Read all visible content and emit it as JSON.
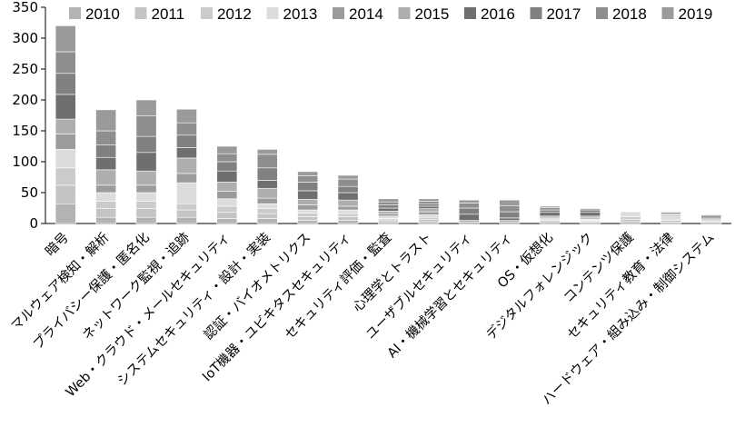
{
  "chart_data": {
    "type": "bar",
    "stacked": true,
    "title": "",
    "xlabel": "",
    "ylabel": "",
    "ylim": [
      0,
      350
    ],
    "yticks": [
      0,
      50,
      100,
      150,
      200,
      250,
      300,
      350
    ],
    "grid": false,
    "legend_position": "top",
    "categories": [
      "暗号",
      "マルウェア検知・解析",
      "プライバシー保護・匿名化",
      "ネットワーク監視・追跡",
      "Web・クラウド・メールセキュリティ",
      "システムセキュリティ・設計・実装",
      "認証・バイオメトリクス",
      "IoT機器・ユビキタスセキュリティ",
      "セキュリティ評価・監査",
      "心理学とトラスト",
      "ユーザブルセキュリティ",
      "AI・機械学習とセキュリティ",
      "OS・仮想化",
      "デジタルフォレンジック",
      "コンテンツ保護",
      "セキュリティ教育・法律",
      "ハードウェア・組み込み・制御システム"
    ],
    "series": [
      {
        "name": "2010",
        "color": "#b3b3b3",
        "values": [
          32,
          10,
          10,
          10,
          8,
          8,
          5,
          5,
          3,
          3,
          0,
          0,
          3,
          2,
          3,
          2,
          2
        ]
      },
      {
        "name": "2011",
        "color": "#c4c4c4",
        "values": [
          30,
          14,
          14,
          12,
          10,
          8,
          6,
          6,
          3,
          4,
          0,
          0,
          2,
          2,
          4,
          3,
          2
        ]
      },
      {
        "name": "2012",
        "color": "#cbcbcb",
        "values": [
          28,
          12,
          12,
          10,
          10,
          8,
          6,
          5,
          2,
          3,
          0,
          0,
          2,
          1,
          4,
          2,
          1
        ]
      },
      {
        "name": "2013",
        "color": "#dcdcdc",
        "values": [
          30,
          14,
          14,
          34,
          12,
          8,
          5,
          6,
          4,
          4,
          0,
          0,
          1,
          2,
          8,
          5,
          0
        ]
      },
      {
        "name": "2014",
        "color": "#9b9b9b",
        "values": [
          25,
          12,
          12,
          15,
          12,
          9,
          8,
          6,
          4,
          5,
          2,
          2,
          2,
          2,
          0,
          2,
          2
        ]
      },
      {
        "name": "2015",
        "color": "#aeaeae",
        "values": [
          24,
          25,
          23,
          25,
          15,
          16,
          9,
          10,
          4,
          5,
          3,
          3,
          2,
          3,
          0,
          2,
          2
        ]
      },
      {
        "name": "2016",
        "color": "#6f6f6f",
        "values": [
          40,
          20,
          30,
          17,
          18,
          13,
          14,
          12,
          5,
          4,
          10,
          4,
          6,
          6,
          0,
          2,
          3
        ]
      },
      {
        "name": "2017",
        "color": "#808080",
        "values": [
          34,
          20,
          26,
          20,
          15,
          20,
          14,
          10,
          5,
          4,
          10,
          10,
          4,
          4,
          0,
          1,
          2
        ]
      },
      {
        "name": "2018",
        "color": "#8e8e8e",
        "values": [
          35,
          23,
          33,
          20,
          13,
          22,
          10,
          12,
          5,
          4,
          8,
          10,
          4,
          2,
          0,
          1,
          1
        ]
      },
      {
        "name": "2019",
        "color": "#9a9a9a",
        "values": [
          42,
          34,
          26,
          22,
          12,
          8,
          7,
          6,
          5,
          4,
          5,
          9,
          2,
          1,
          0,
          0,
          0
        ]
      }
    ]
  }
}
